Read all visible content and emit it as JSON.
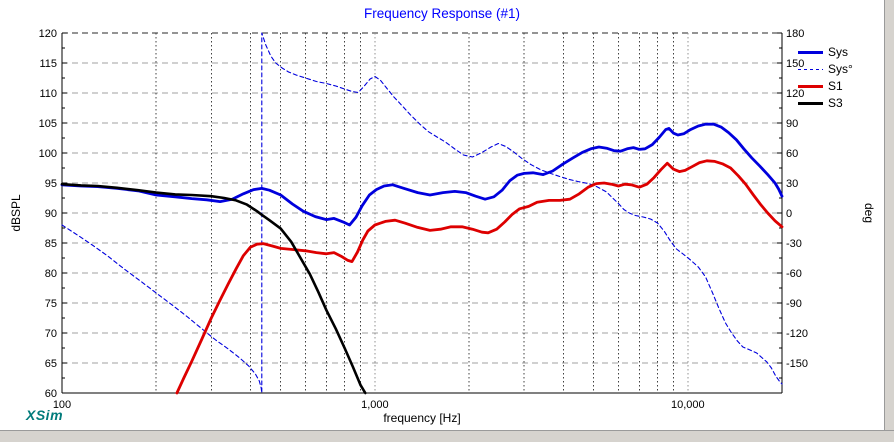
{
  "title": "Frequency Response (#1)",
  "watermark": "XSim",
  "x_axis": {
    "label": "frequency [Hz]",
    "ticks": [
      {
        "value": 100,
        "label": "100"
      },
      {
        "value": 1000,
        "label": "1,000"
      },
      {
        "value": 10000,
        "label": "10,000"
      }
    ]
  },
  "y_axis": {
    "label": "dBSPL",
    "min": 60,
    "max": 120,
    "step": 5,
    "ticks": [
      120,
      115,
      110,
      105,
      100,
      95,
      90,
      85,
      80,
      75,
      70,
      65,
      60
    ]
  },
  "y2_axis": {
    "label": "deg",
    "min": -180,
    "max": 180,
    "step": 30,
    "ticks": [
      180,
      150,
      120,
      90,
      60,
      30,
      0,
      -30,
      -60,
      -90,
      -120,
      -150
    ]
  },
  "legend": {
    "items": [
      {
        "id": "sys",
        "label": "Sys",
        "color": "#0000dd",
        "style": "solid",
        "width": 3
      },
      {
        "id": "sys-phase",
        "label": "Sys°",
        "color": "#0000dd",
        "style": "dashed",
        "width": 1
      },
      {
        "id": "s1",
        "label": "S1",
        "color": "#dd0000",
        "style": "solid",
        "width": 3
      },
      {
        "id": "s3",
        "label": "S3",
        "color": "#000000",
        "style": "solid",
        "width": 3
      }
    ]
  },
  "colors": {
    "title": "#0000ff",
    "watermark": "#007b7b",
    "grid_major": "#a0a0a0",
    "grid_minor_vertical": "#404040",
    "frame": "#000000"
  },
  "chart_data": {
    "type": "line",
    "x": {
      "scale": "log",
      "min": 100,
      "max": 20000,
      "label": "frequency [Hz]"
    },
    "y_left": {
      "min": 60,
      "max": 120,
      "label": "dBSPL",
      "gridline_step": 5
    },
    "y_right": {
      "min": -180,
      "max": 180,
      "label": "deg",
      "gridline_step": 30
    },
    "grid": true,
    "legend_position": "top-right",
    "phase_wrap_frequency_hz": 435,
    "series": [
      {
        "name": "Sys°",
        "axis": "right",
        "unit": "deg",
        "color": "#0000dd",
        "line_width": 1.1,
        "line_style": "dashed",
        "points": [
          [
            100,
            -12
          ],
          [
            112,
            -22
          ],
          [
            125,
            -32
          ],
          [
            140,
            -43
          ],
          [
            158,
            -56
          ],
          [
            178,
            -68
          ],
          [
            200,
            -80
          ],
          [
            225,
            -92
          ],
          [
            252,
            -104
          ],
          [
            283,
            -117
          ],
          [
            310,
            -127
          ],
          [
            340,
            -136
          ],
          [
            370,
            -145
          ],
          [
            395,
            -153
          ],
          [
            415,
            -161
          ],
          [
            427,
            -168
          ],
          [
            433,
            -175
          ],
          [
            435,
            -180
          ],
          [
            435,
            180
          ],
          [
            448,
            168
          ],
          [
            465,
            157
          ],
          [
            482,
            150
          ],
          [
            505,
            145
          ],
          [
            530,
            141
          ],
          [
            560,
            138
          ],
          [
            600,
            135
          ],
          [
            650,
            131.5
          ],
          [
            700,
            129.5
          ],
          [
            750,
            127
          ],
          [
            800,
            124
          ],
          [
            845,
            121.5
          ],
          [
            885,
            120.5
          ],
          [
            925,
            127
          ],
          [
            965,
            134
          ],
          [
            1000,
            136.5
          ],
          [
            1040,
            133
          ],
          [
            1090,
            125
          ],
          [
            1150,
            116
          ],
          [
            1220,
            107.5
          ],
          [
            1300,
            98
          ],
          [
            1390,
            89
          ],
          [
            1480,
            81.5
          ],
          [
            1570,
            76.5
          ],
          [
            1680,
            71
          ],
          [
            1800,
            64
          ],
          [
            1920,
            58
          ],
          [
            2050,
            56
          ],
          [
            2200,
            60.5
          ],
          [
            2350,
            66
          ],
          [
            2480,
            69.5
          ],
          [
            2620,
            66.5
          ],
          [
            2780,
            61
          ],
          [
            2950,
            54.5
          ],
          [
            3150,
            48.5
          ],
          [
            3400,
            43
          ],
          [
            3650,
            39.5
          ],
          [
            3900,
            36.5
          ],
          [
            4150,
            33.8
          ],
          [
            4450,
            31.5
          ],
          [
            4750,
            29.8
          ],
          [
            5000,
            28
          ],
          [
            5250,
            24.5
          ],
          [
            5500,
            21
          ],
          [
            5750,
            15
          ],
          [
            6000,
            9.5
          ],
          [
            6250,
            3.5
          ],
          [
            6500,
            0
          ],
          [
            6800,
            -2.5
          ],
          [
            7200,
            -4
          ],
          [
            7600,
            -6
          ],
          [
            8000,
            -10
          ],
          [
            8400,
            -18
          ],
          [
            8800,
            -28
          ],
          [
            9200,
            -36
          ],
          [
            9700,
            -41.5
          ],
          [
            10200,
            -47
          ],
          [
            10800,
            -54
          ],
          [
            11400,
            -64
          ],
          [
            12000,
            -80
          ],
          [
            12600,
            -96
          ],
          [
            13200,
            -110
          ],
          [
            13800,
            -120
          ],
          [
            14400,
            -128
          ],
          [
            15000,
            -134
          ],
          [
            15800,
            -137
          ],
          [
            16600,
            -140
          ],
          [
            17300,
            -145
          ],
          [
            17900,
            -149
          ],
          [
            18500,
            -155
          ],
          [
            19100,
            -163
          ],
          [
            19600,
            -168
          ],
          [
            20000,
            -171
          ]
        ]
      },
      {
        "name": "Sys",
        "axis": "left",
        "unit": "dB",
        "color": "#0000dd",
        "line_width": 2.8,
        "line_style": "solid",
        "points": [
          [
            100,
            94.7
          ],
          [
            115,
            94.5
          ],
          [
            130,
            94.4
          ],
          [
            150,
            94.1
          ],
          [
            175,
            93.7
          ],
          [
            200,
            93.0
          ],
          [
            230,
            92.7
          ],
          [
            260,
            92.4
          ],
          [
            290,
            92.2
          ],
          [
            320,
            91.9
          ],
          [
            350,
            92.3
          ],
          [
            380,
            93.2
          ],
          [
            410,
            93.9
          ],
          [
            435,
            94.1
          ],
          [
            460,
            93.8
          ],
          [
            500,
            93.0
          ],
          [
            545,
            91.5
          ],
          [
            590,
            90.3
          ],
          [
            645,
            89.4
          ],
          [
            700,
            88.9
          ],
          [
            740,
            89.1
          ],
          [
            800,
            88.4
          ],
          [
            830,
            88.0
          ],
          [
            870,
            89.3
          ],
          [
            910,
            91.2
          ],
          [
            960,
            93.0
          ],
          [
            1010,
            93.9
          ],
          [
            1070,
            94.5
          ],
          [
            1140,
            94.7
          ],
          [
            1240,
            94.1
          ],
          [
            1370,
            93.4
          ],
          [
            1500,
            93.0
          ],
          [
            1650,
            93.4
          ],
          [
            1800,
            93.6
          ],
          [
            1950,
            93.4
          ],
          [
            2100,
            92.8
          ],
          [
            2250,
            92.3
          ],
          [
            2400,
            92.7
          ],
          [
            2550,
            93.8
          ],
          [
            2700,
            95.4
          ],
          [
            2850,
            96.3
          ],
          [
            3000,
            96.6
          ],
          [
            3200,
            96.7
          ],
          [
            3450,
            96.4
          ],
          [
            3700,
            97.0
          ],
          [
            4000,
            98.2
          ],
          [
            4300,
            99.2
          ],
          [
            4600,
            100.1
          ],
          [
            4900,
            100.7
          ],
          [
            5200,
            101.0
          ],
          [
            5500,
            100.8
          ],
          [
            5800,
            100.4
          ],
          [
            6100,
            100.3
          ],
          [
            6400,
            100.7
          ],
          [
            6700,
            100.9
          ],
          [
            7000,
            100.6
          ],
          [
            7300,
            100.7
          ],
          [
            7700,
            101.4
          ],
          [
            8100,
            102.6
          ],
          [
            8500,
            103.9
          ],
          [
            8700,
            104.1
          ],
          [
            9000,
            103.3
          ],
          [
            9300,
            103.0
          ],
          [
            9700,
            103.2
          ],
          [
            10200,
            103.9
          ],
          [
            10800,
            104.5
          ],
          [
            11400,
            104.8
          ],
          [
            12100,
            104.8
          ],
          [
            12800,
            104.3
          ],
          [
            13500,
            103.4
          ],
          [
            14300,
            102.2
          ],
          [
            15100,
            100.7
          ],
          [
            16000,
            99.2
          ],
          [
            17000,
            97.8
          ],
          [
            18000,
            96.4
          ],
          [
            19000,
            95.0
          ],
          [
            19500,
            94.0
          ],
          [
            20000,
            92.8
          ]
        ]
      },
      {
        "name": "S1",
        "axis": "left",
        "unit": "dB",
        "color": "#dd0000",
        "line_width": 2.8,
        "line_style": "solid",
        "points": [
          [
            233,
            60
          ],
          [
            245,
            62.5
          ],
          [
            260,
            65.3
          ],
          [
            280,
            69
          ],
          [
            300,
            72.5
          ],
          [
            320,
            75.5
          ],
          [
            340,
            78.2
          ],
          [
            360,
            80.7
          ],
          [
            380,
            82.9
          ],
          [
            400,
            84.3
          ],
          [
            420,
            84.8
          ],
          [
            440,
            84.9
          ],
          [
            470,
            84.5
          ],
          [
            500,
            84.1
          ],
          [
            550,
            83.9
          ],
          [
            600,
            83.7
          ],
          [
            650,
            83.4
          ],
          [
            700,
            83.2
          ],
          [
            740,
            83.4
          ],
          [
            780,
            82.8
          ],
          [
            820,
            82.1
          ],
          [
            845,
            81.9
          ],
          [
            880,
            83.5
          ],
          [
            915,
            85.5
          ],
          [
            950,
            87.0
          ],
          [
            1000,
            88.0
          ],
          [
            1080,
            88.6
          ],
          [
            1160,
            88.8
          ],
          [
            1250,
            88.3
          ],
          [
            1370,
            87.6
          ],
          [
            1500,
            87.1
          ],
          [
            1620,
            87.3
          ],
          [
            1750,
            87.7
          ],
          [
            1900,
            87.7
          ],
          [
            2050,
            87.3
          ],
          [
            2200,
            86.8
          ],
          [
            2300,
            86.7
          ],
          [
            2450,
            87.3
          ],
          [
            2600,
            88.5
          ],
          [
            2750,
            89.8
          ],
          [
            2900,
            90.7
          ],
          [
            3100,
            91.1
          ],
          [
            3300,
            91.8
          ],
          [
            3600,
            92.1
          ],
          [
            3900,
            92.1
          ],
          [
            4200,
            92.3
          ],
          [
            4500,
            93.2
          ],
          [
            4800,
            94.3
          ],
          [
            5100,
            94.9
          ],
          [
            5400,
            95.0
          ],
          [
            5700,
            94.8
          ],
          [
            6000,
            94.5
          ],
          [
            6300,
            94.8
          ],
          [
            6600,
            94.7
          ],
          [
            7000,
            94.3
          ],
          [
            7400,
            94.8
          ],
          [
            7800,
            95.9
          ],
          [
            8200,
            97.2
          ],
          [
            8600,
            98.3
          ],
          [
            9000,
            97.3
          ],
          [
            9400,
            96.9
          ],
          [
            9800,
            97.1
          ],
          [
            10300,
            97.7
          ],
          [
            10900,
            98.4
          ],
          [
            11500,
            98.7
          ],
          [
            12200,
            98.6
          ],
          [
            12900,
            98.2
          ],
          [
            13700,
            97.5
          ],
          [
            14500,
            96.2
          ],
          [
            15300,
            94.8
          ],
          [
            16200,
            93.0
          ],
          [
            17100,
            91.4
          ],
          [
            18000,
            90.0
          ],
          [
            19000,
            88.7
          ],
          [
            20000,
            87.7
          ]
        ]
      },
      {
        "name": "S3",
        "axis": "left",
        "unit": "dB",
        "color": "#000000",
        "line_width": 2.6,
        "line_style": "solid",
        "points": [
          [
            100,
            94.8
          ],
          [
            115,
            94.6
          ],
          [
            130,
            94.5
          ],
          [
            150,
            94.2
          ],
          [
            175,
            93.8
          ],
          [
            200,
            93.4
          ],
          [
            230,
            93.1
          ],
          [
            260,
            93.0
          ],
          [
            300,
            92.8
          ],
          [
            330,
            92.5
          ],
          [
            360,
            92.1
          ],
          [
            390,
            91.4
          ],
          [
            420,
            90.3
          ],
          [
            435,
            89.7
          ],
          [
            460,
            88.8
          ],
          [
            500,
            87.4
          ],
          [
            540,
            85.2
          ],
          [
            580,
            82.4
          ],
          [
            620,
            79.8
          ],
          [
            660,
            76.8
          ],
          [
            700,
            73.8
          ],
          [
            750,
            70.7
          ],
          [
            800,
            67.5
          ],
          [
            850,
            64.4
          ],
          [
            900,
            61.3
          ],
          [
            932,
            60.0
          ]
        ]
      }
    ]
  }
}
